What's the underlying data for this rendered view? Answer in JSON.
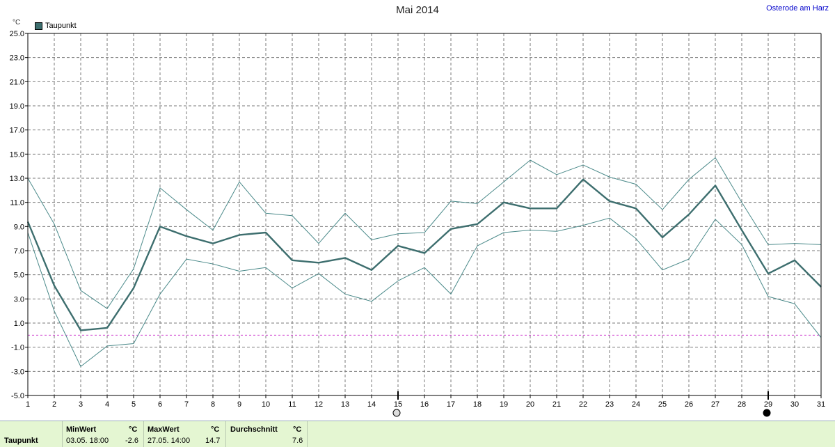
{
  "header": {
    "title": "Mai 2014",
    "station": "Osterode am Harz",
    "unit": "°C"
  },
  "legend": {
    "label": "Taupunkt",
    "color": "#3d6e6e"
  },
  "chart_data": {
    "type": "line",
    "title": "Mai 2014",
    "ylabel": "°C",
    "xlabel": "",
    "ylim": [
      -5.0,
      25.0
    ],
    "yticks": [
      "25.0",
      "23.0",
      "21.0",
      "19.0",
      "17.0",
      "15.0",
      "13.0",
      "11.0",
      "9.0",
      "7.0",
      "5.0",
      "3.0",
      "1.0",
      "-1.0",
      "-3.0",
      "-5.0"
    ],
    "x": [
      1,
      2,
      3,
      4,
      5,
      6,
      7,
      8,
      9,
      10,
      11,
      12,
      13,
      14,
      15,
      16,
      17,
      18,
      19,
      20,
      21,
      22,
      23,
      24,
      25,
      26,
      27,
      28,
      29,
      30,
      31
    ],
    "series": [
      {
        "name": "Taupunkt",
        "role": "mean",
        "values": [
          9.4,
          4.1,
          0.4,
          0.6,
          3.9,
          9.0,
          8.2,
          7.6,
          8.3,
          8.5,
          6.2,
          6.0,
          6.4,
          5.4,
          7.4,
          6.8,
          8.8,
          9.2,
          11.0,
          10.5,
          10.5,
          12.9,
          11.1,
          10.5,
          8.1,
          10.0,
          12.4,
          8.7,
          5.1,
          6.2,
          4.0
        ]
      },
      {
        "values": [
          13.0,
          9.2,
          3.7,
          2.2,
          5.5,
          12.2,
          10.4,
          8.7,
          12.7,
          10.1,
          9.9,
          7.6,
          10.1,
          7.9,
          8.4,
          8.5,
          11.1,
          10.9,
          12.7,
          14.5,
          13.3,
          14.1,
          13.1,
          12.5,
          10.4,
          12.9,
          14.7,
          11.0,
          7.5,
          7.6,
          7.5
        ]
      },
      {
        "values": [
          8.5,
          2.0,
          -2.6,
          -0.9,
          -0.7,
          3.4,
          6.3,
          5.9,
          5.3,
          5.6,
          3.9,
          5.1,
          3.4,
          2.8,
          4.5,
          5.6,
          3.4,
          7.4,
          8.5,
          8.7,
          8.6,
          9.1,
          9.7,
          8.0,
          5.4,
          6.3,
          9.6,
          7.5,
          3.2,
          2.6,
          -0.2
        ]
      }
    ],
    "colors": {
      "mean": "#3d6e6e",
      "envelope": "#4b8a8a",
      "zero_line": "#cc33cc",
      "grid": "#7a7a7a"
    },
    "reference_line": 0.0,
    "grid": true,
    "moon_markers": [
      {
        "day": 15,
        "symbol": "full-moon"
      },
      {
        "day": 29,
        "symbol": "new-moon"
      }
    ]
  },
  "stats": {
    "row_label": "Taupunkt",
    "min_label": "MinWert",
    "min_unit": "°C",
    "min_date": "03.05.  18:00",
    "min_value": "-2.6",
    "max_label": "MaxWert",
    "max_unit": "°C",
    "max_date": "27.05.  14:00",
    "max_value": "14.7",
    "avg_label": "Durchschnitt",
    "avg_unit": "°C",
    "avg_value": "7.6"
  }
}
